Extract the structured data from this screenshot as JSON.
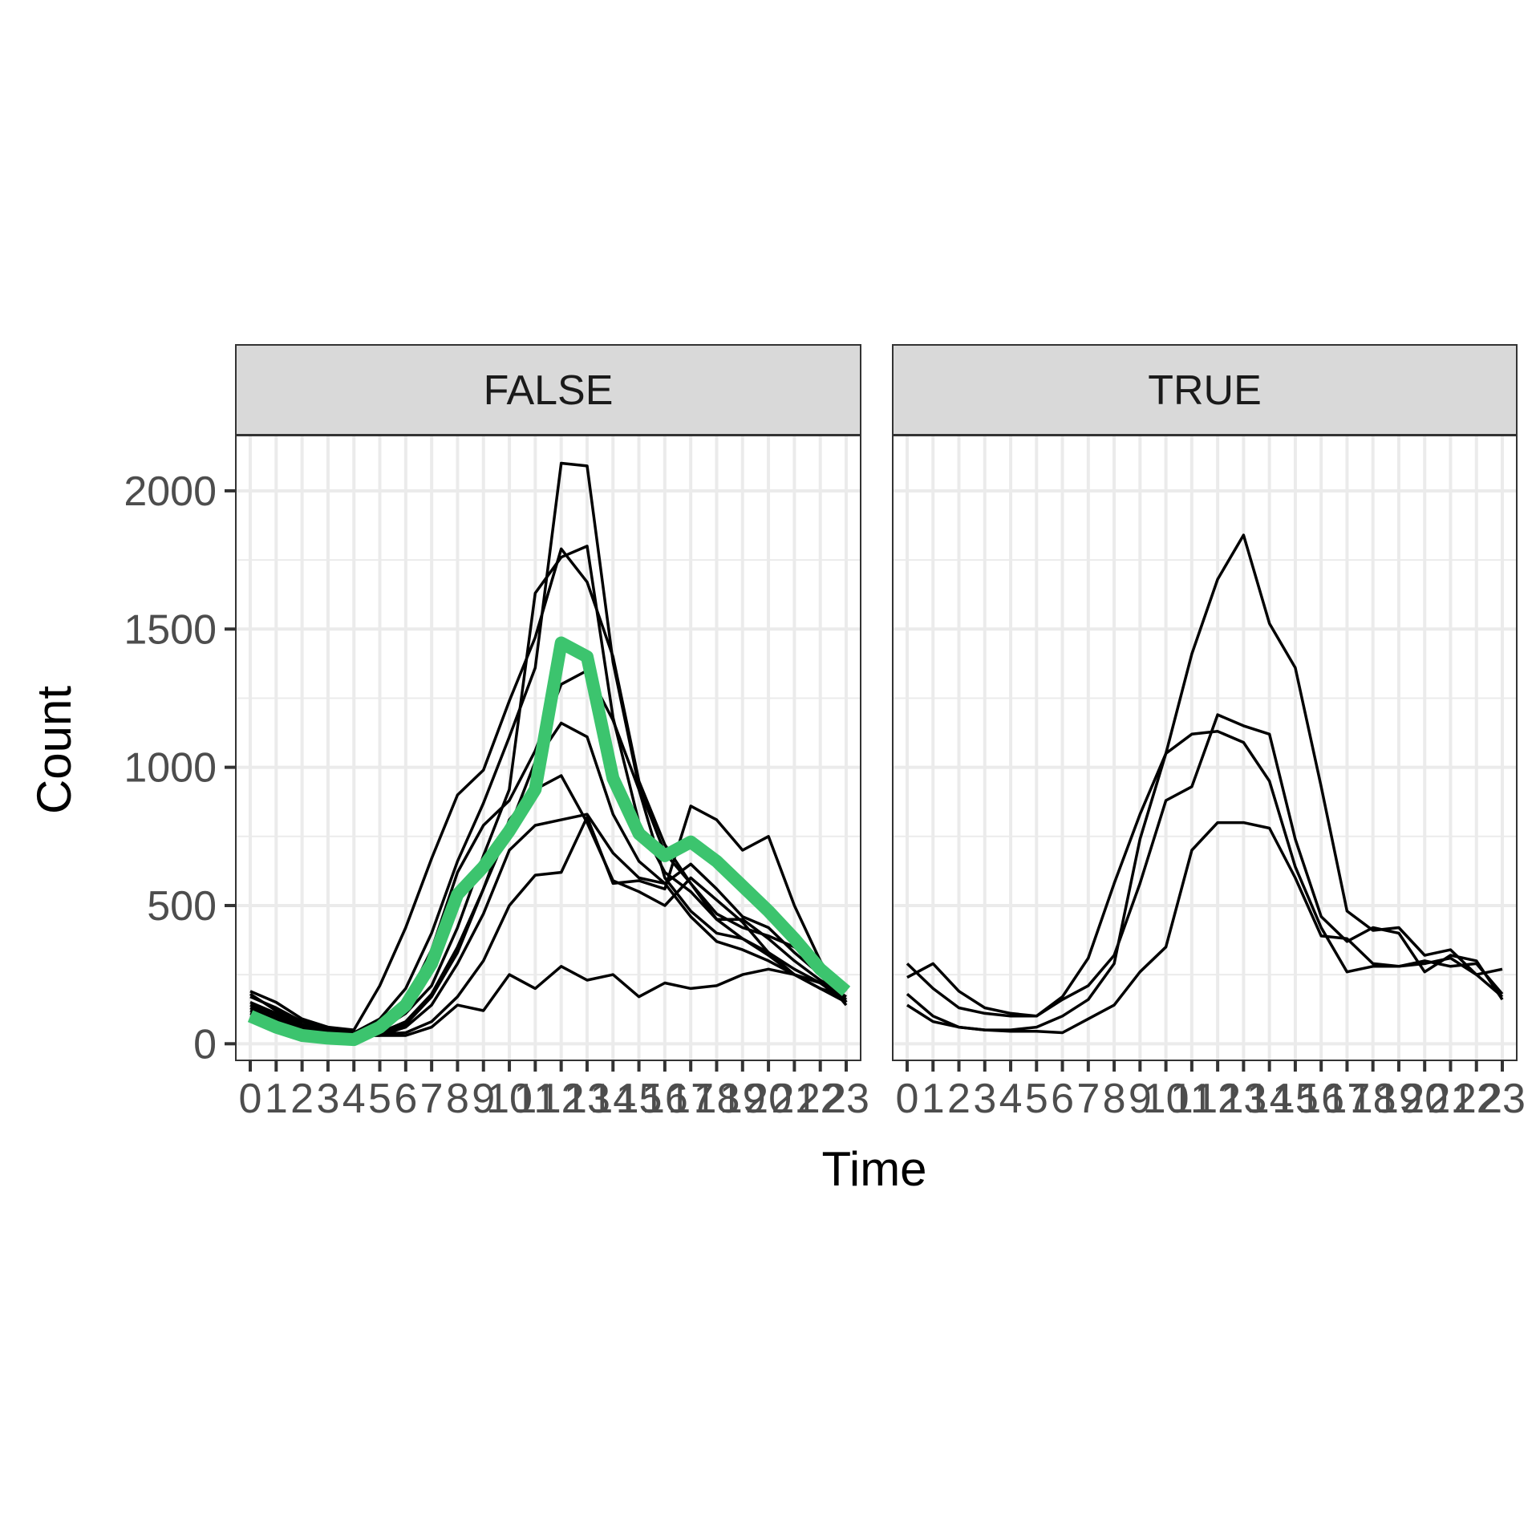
{
  "chart_data": {
    "type": "line",
    "layout": "faceted",
    "xlabel": "Time",
    "ylabel": "Count",
    "ylim": [
      -60,
      2200
    ],
    "yticks": [
      0,
      500,
      1000,
      1500,
      2000
    ],
    "xticks": [
      "0",
      "1",
      "2",
      "3",
      "4",
      "5",
      "6",
      "7",
      "8",
      "9",
      "10",
      "11",
      "12",
      "13",
      "14",
      "15",
      "16",
      "17",
      "18",
      "19",
      "20",
      "21",
      "22",
      "23"
    ],
    "grid": true,
    "colors": {
      "line": "#000000",
      "highlight": "#3CC46E",
      "strip": "#D9D9D9",
      "grid": "#EBEBEB"
    },
    "panels": [
      {
        "strip_label": "FALSE",
        "series": [
          {
            "values": [
              190,
              150,
              90,
              60,
              50,
              210,
              420,
              670,
              900,
              990,
              1240,
              1470,
              1790,
              1670,
              1400,
              950,
              720,
              580,
              470,
              420,
              390,
              350,
              280,
              190
            ]
          },
          {
            "values": [
              170,
              130,
              80,
              55,
              40,
              90,
              200,
              400,
              660,
              870,
              1110,
              1360,
              2100,
              2090,
              1380,
              930,
              690,
              580,
              450,
              450,
              380,
              300,
              230,
              170
            ]
          },
          {
            "values": [
              180,
              120,
              70,
              50,
              40,
              60,
              150,
              340,
              620,
              790,
              880,
              1060,
              1300,
              1350,
              1170,
              920,
              600,
              480,
              400,
              380,
              330,
              270,
              220,
              160
            ]
          },
          {
            "values": [
              140,
              100,
              60,
              50,
              40,
              50,
              110,
              210,
              420,
              680,
              920,
              1630,
              1760,
              1800,
              1180,
              800,
              620,
              550,
              450,
              380,
              320,
              250,
              200,
              170
            ]
          },
          {
            "values": [
              150,
              110,
              60,
              45,
              35,
              40,
              80,
              180,
              350,
              560,
              780,
              1020,
              1160,
              1110,
              830,
              660,
              580,
              460,
              370,
              340,
              300,
              250,
              200,
              150
            ]
          },
          {
            "values": [
              130,
              90,
              55,
              40,
              30,
              30,
              60,
              140,
              290,
              470,
              700,
              790,
              810,
              830,
              690,
              600,
              580,
              650,
              560,
              460,
              420,
              330,
              250,
              140
            ]
          },
          {
            "values": [
              120,
              90,
              60,
              45,
              30,
              35,
              70,
              170,
              330,
              560,
              810,
              920,
              970,
              800,
              590,
              550,
              500,
              600,
              520,
              440,
              330,
              250,
              220,
              160
            ]
          },
          {
            "values": [
              110,
              80,
              50,
              40,
              30,
              35,
              40,
              80,
              170,
              300,
              500,
              610,
              620,
              820,
              580,
              590,
              560,
              860,
              810,
              700,
              750,
              500,
              300,
              150
            ]
          },
          {
            "values": [
              100,
              70,
              40,
              35,
              30,
              30,
              30,
              60,
              140,
              120,
              250,
              200,
              280,
              230,
              250,
              170,
              220,
              200,
              210,
              250,
              270,
              250,
              220,
              150
            ]
          },
          {
            "highlight": true,
            "values": [
              100,
              60,
              30,
              20,
              15,
              60,
              140,
              290,
              540,
              640,
              770,
              920,
              1450,
              1400,
              960,
              760,
              680,
              730,
              660,
              570,
              480,
              380,
              270,
              190
            ]
          }
        ]
      },
      {
        "strip_label": "TRUE",
        "series": [
          {
            "values": [
              240,
              290,
              190,
              130,
              110,
              100,
              170,
              310,
              580,
              830,
              1050,
              1410,
              1680,
              1840,
              1520,
              1360,
              930,
              480,
              410,
              420,
              320,
              340,
              250,
              170
            ]
          },
          {
            "values": [
              290,
              200,
              130,
              110,
              100,
              100,
              160,
              210,
              320,
              580,
              880,
              930,
              1190,
              1150,
              1120,
              740,
              460,
              370,
              420,
              400,
              260,
              320,
              300,
              160
            ]
          },
          {
            "values": [
              180,
              100,
              60,
              50,
              50,
              60,
              100,
              160,
              290,
              740,
              1050,
              1120,
              1130,
              1090,
              950,
              640,
              420,
              260,
              280,
              280,
              300,
              280,
              290,
              180
            ]
          },
          {
            "values": [
              140,
              80,
              60,
              50,
              45,
              45,
              40,
              90,
              140,
              260,
              350,
              700,
              800,
              800,
              780,
              600,
              390,
              380,
              290,
              280,
              290,
              310,
              250,
              270
            ]
          }
        ]
      }
    ]
  }
}
